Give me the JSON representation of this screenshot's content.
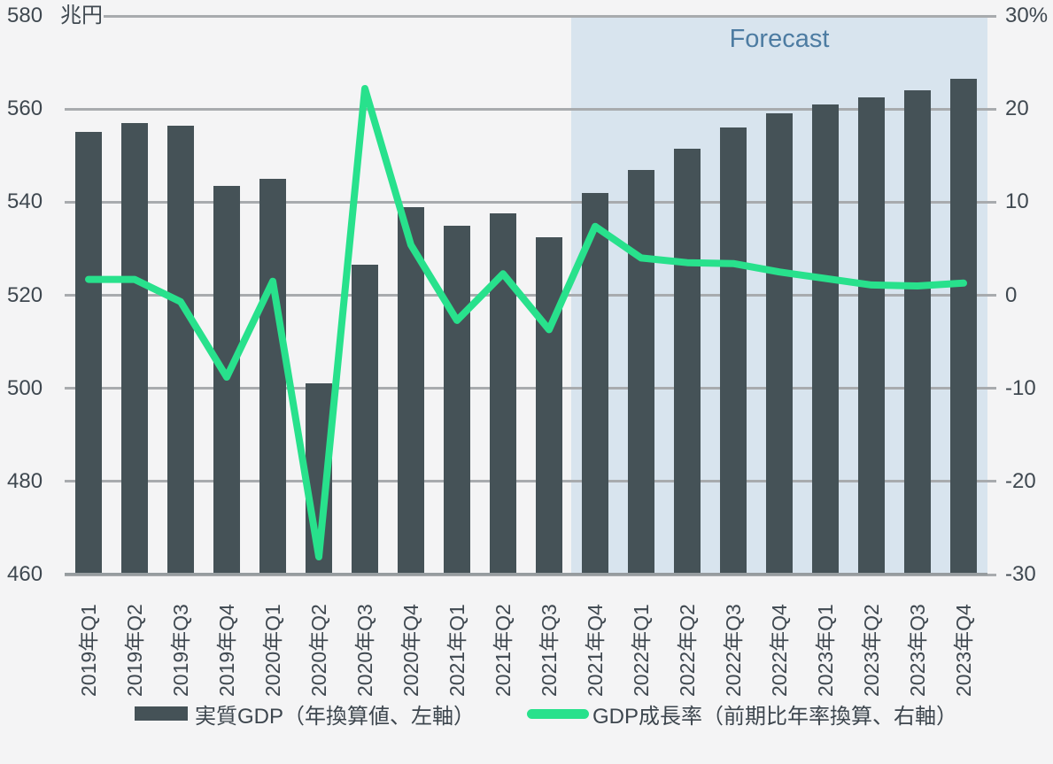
{
  "chart_data": {
    "type": "bar+line",
    "categories": [
      "2019年Q1",
      "2019年Q2",
      "2019年Q3",
      "2019年Q4",
      "2020年Q1",
      "2020年Q2",
      "2020年Q3",
      "2020年Q4",
      "2021年Q1",
      "2021年Q2",
      "2021年Q3",
      "2021年Q4",
      "2022年Q1",
      "2022年Q2",
      "2022年Q3",
      "2022年Q4",
      "2023年Q1",
      "2023年Q2",
      "2023年Q3",
      "2023年Q4"
    ],
    "series": [
      {
        "name": "実質GDP（年換算値、左軸）",
        "type": "bar",
        "axis": "left",
        "unit": "兆円",
        "color": "#455257",
        "values": [
          555,
          557,
          556.5,
          543.5,
          545,
          501,
          526.5,
          539,
          535,
          537.5,
          532.5,
          542,
          547,
          551.5,
          556,
          559,
          561,
          562.5,
          564,
          566.5
        ]
      },
      {
        "name": "GDP成長率（前期比年率換算、右軸）",
        "type": "line",
        "axis": "right",
        "unit": "%",
        "color": "#28e18c",
        "values": [
          1.7,
          1.7,
          -0.7,
          -8.8,
          1.5,
          -28.1,
          22.2,
          5.4,
          -2.7,
          2.3,
          -3.7,
          7.4,
          4.0,
          3.5,
          3.4,
          2.5,
          1.8,
          1.1,
          1.0,
          1.3
        ]
      }
    ],
    "left_axis": {
      "title": "兆円",
      "min": 460,
      "max": 580,
      "tick_values": [
        580,
        560,
        540,
        520,
        500,
        480,
        460
      ],
      "tick_labels": [
        "580",
        "560",
        "540",
        "520",
        "500",
        "480",
        "460"
      ]
    },
    "right_axis": {
      "min": -30,
      "max": 30,
      "tick_values": [
        30,
        20,
        10,
        0,
        -10,
        -20,
        -30
      ],
      "tick_labels": [
        "30%",
        "20",
        "10",
        "0",
        "-10",
        "-20",
        "-30"
      ]
    },
    "forecast": {
      "label": "Forecast",
      "start_category": "2021年Q4",
      "start_index": 11,
      "band_color": "#d8e4ee",
      "label_color": "#4d7ca2"
    },
    "grid": true,
    "legend_position": "bottom",
    "colors": {
      "background": "#f4f4f5",
      "gridline": "#a8abae",
      "axis_line": "#969c9f",
      "tick_text": "#3f4850"
    }
  }
}
